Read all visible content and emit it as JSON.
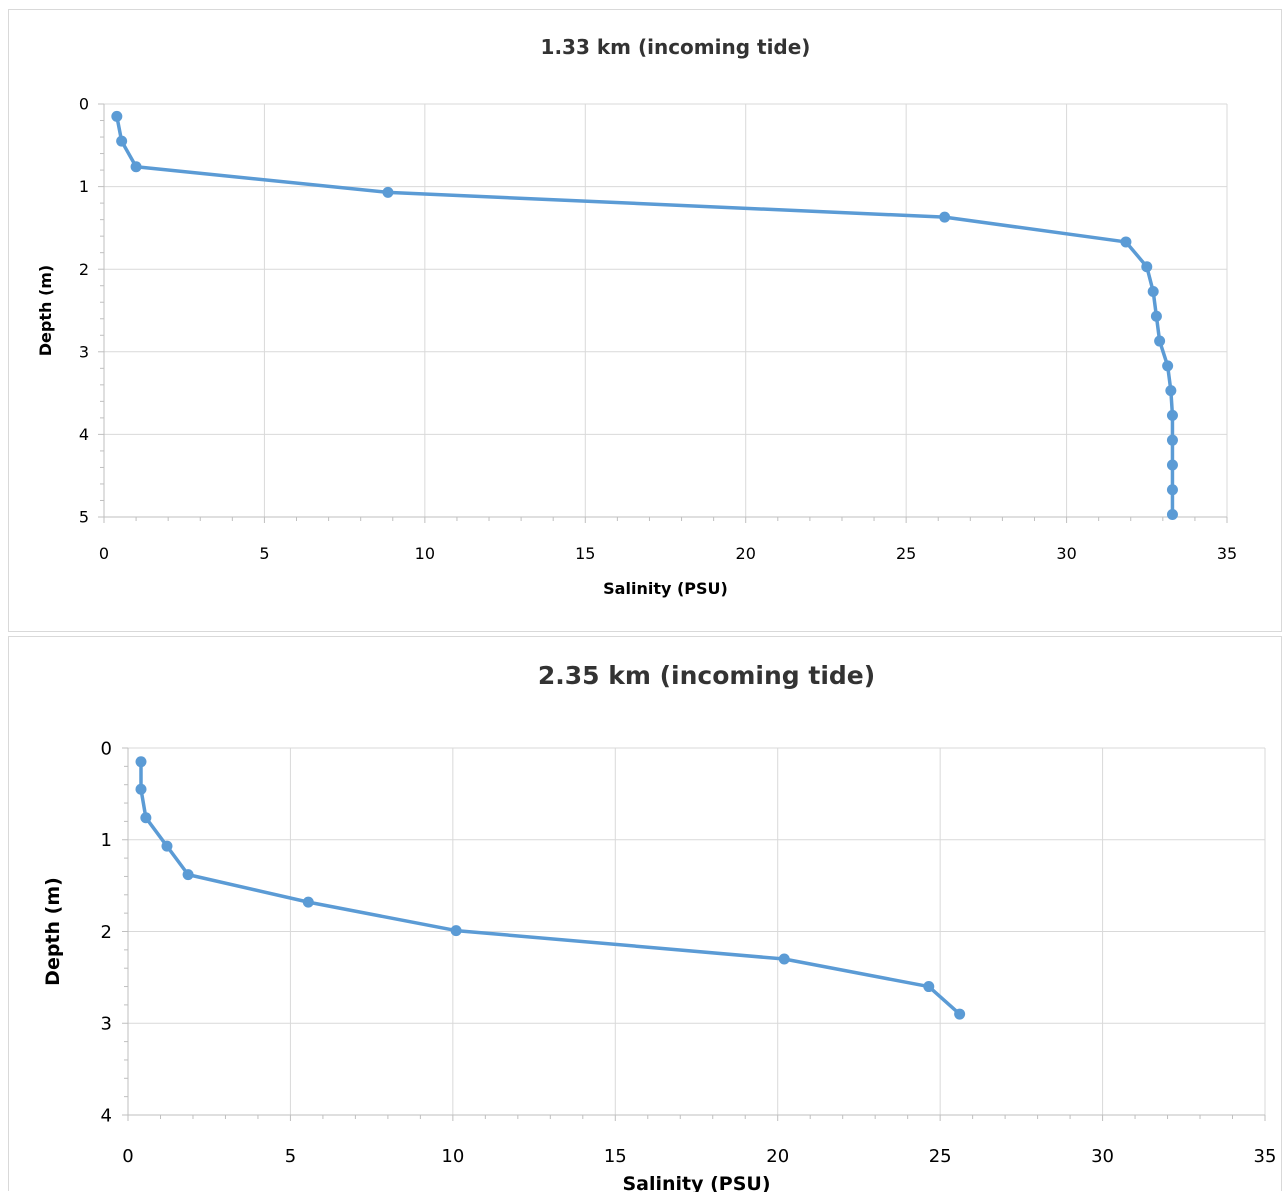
{
  "chart_data": [
    {
      "type": "line",
      "title": "1.33 km (incoming tide)",
      "xlabel": "Salinity (PSU)",
      "ylabel": "Depth (m)",
      "xlim": [
        0,
        35
      ],
      "ylim": [
        0,
        5
      ],
      "y_inverted": true,
      "grid": true,
      "legend": "none",
      "xticks": [
        "0",
        "5",
        "10",
        "15",
        "20",
        "25",
        "30",
        "35"
      ],
      "yticks": [
        "0",
        "1",
        "2",
        "3",
        "4",
        "5"
      ],
      "series_color": "#5b9bd5",
      "points": [
        {
          "salinity": 0.4,
          "depth": 0.15
        },
        {
          "salinity": 0.55,
          "depth": 0.45
        },
        {
          "salinity": 1.0,
          "depth": 0.76
        },
        {
          "salinity": 8.85,
          "depth": 1.07
        },
        {
          "salinity": 26.2,
          "depth": 1.37
        },
        {
          "salinity": 31.85,
          "depth": 1.67
        },
        {
          "salinity": 32.5,
          "depth": 1.97
        },
        {
          "salinity": 32.7,
          "depth": 2.27
        },
        {
          "salinity": 32.8,
          "depth": 2.57
        },
        {
          "salinity": 32.9,
          "depth": 2.87
        },
        {
          "salinity": 33.15,
          "depth": 3.17
        },
        {
          "salinity": 33.25,
          "depth": 3.47
        },
        {
          "salinity": 33.3,
          "depth": 3.77
        },
        {
          "salinity": 33.3,
          "depth": 4.07
        },
        {
          "salinity": 33.3,
          "depth": 4.37
        },
        {
          "salinity": 33.3,
          "depth": 4.67
        },
        {
          "salinity": 33.3,
          "depth": 4.97
        }
      ]
    },
    {
      "type": "line",
      "title": "2.35 km (incoming tide)",
      "xlabel": "Salinity (PSU)",
      "ylabel": "Depth (m)",
      "xlim": [
        0,
        35
      ],
      "ylim": [
        0,
        4
      ],
      "y_inverted": true,
      "grid": true,
      "legend": "none",
      "xticks": [
        "0",
        "5",
        "10",
        "15",
        "20",
        "25",
        "30",
        "35"
      ],
      "yticks": [
        "0",
        "1",
        "2",
        "3",
        "4"
      ],
      "series_color": "#5b9bd5",
      "points": [
        {
          "salinity": 0.4,
          "depth": 0.15
        },
        {
          "salinity": 0.4,
          "depth": 0.45
        },
        {
          "salinity": 0.55,
          "depth": 0.76
        },
        {
          "salinity": 1.2,
          "depth": 1.07
        },
        {
          "salinity": 1.85,
          "depth": 1.38
        },
        {
          "salinity": 5.55,
          "depth": 1.68
        },
        {
          "salinity": 10.1,
          "depth": 1.99
        },
        {
          "salinity": 20.2,
          "depth": 2.3
        },
        {
          "salinity": 24.65,
          "depth": 2.6
        },
        {
          "salinity": 25.6,
          "depth": 2.9
        }
      ]
    }
  ]
}
